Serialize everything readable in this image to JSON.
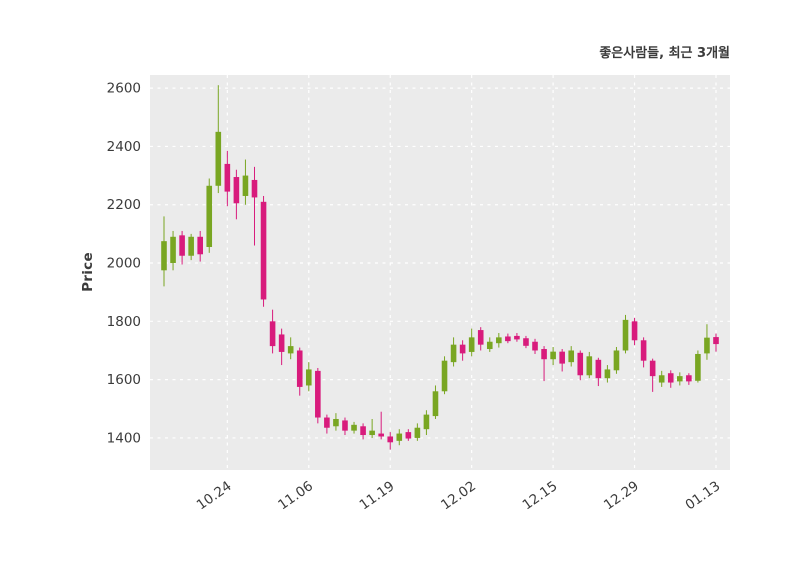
{
  "page": {
    "background": "#ffffff"
  },
  "chart_data": {
    "type": "candlestick",
    "title": "좋은사람들, 최근 3개월",
    "ylabel": "Price",
    "ylim": [
      1290,
      2645
    ],
    "yticks": [
      1400,
      1600,
      1800,
      2000,
      2200,
      2400,
      2600
    ],
    "xticks": [
      {
        "index": 7,
        "label": "10.24"
      },
      {
        "index": 16,
        "label": "11.06"
      },
      {
        "index": 25,
        "label": "11.19"
      },
      {
        "index": 34,
        "label": "12.02"
      },
      {
        "index": 43,
        "label": "12.15"
      },
      {
        "index": 52,
        "label": "12.29"
      },
      {
        "index": 61,
        "label": "01.13"
      }
    ],
    "grid": true,
    "legend": false,
    "colors": {
      "up": "#79a622",
      "down": "#d81b7c",
      "plot_bg": "#ebebeb",
      "grid": "#ffffff",
      "text": "#3b3b3b"
    },
    "candle_format": [
      "open",
      "high",
      "low",
      "close"
    ],
    "candles": [
      [
        1975,
        2160,
        1920,
        2075
      ],
      [
        2000,
        2110,
        1975,
        2090
      ],
      [
        2095,
        2110,
        1995,
        2025
      ],
      [
        2025,
        2100,
        2010,
        2090
      ],
      [
        2090,
        2110,
        2005,
        2030
      ],
      [
        2055,
        2290,
        2035,
        2265
      ],
      [
        2265,
        2610,
        2240,
        2450
      ],
      [
        2340,
        2385,
        2195,
        2245
      ],
      [
        2295,
        2320,
        2150,
        2205
      ],
      [
        2230,
        2355,
        2200,
        2300
      ],
      [
        2285,
        2330,
        2060,
        2225
      ],
      [
        2210,
        2230,
        1850,
        1875
      ],
      [
        1800,
        1840,
        1690,
        1715
      ],
      [
        1755,
        1775,
        1650,
        1695
      ],
      [
        1690,
        1745,
        1670,
        1715
      ],
      [
        1700,
        1710,
        1545,
        1575
      ],
      [
        1580,
        1660,
        1560,
        1635
      ],
      [
        1630,
        1640,
        1450,
        1470
      ],
      [
        1470,
        1480,
        1415,
        1435
      ],
      [
        1440,
        1485,
        1425,
        1465
      ],
      [
        1460,
        1470,
        1410,
        1425
      ],
      [
        1425,
        1455,
        1415,
        1445
      ],
      [
        1440,
        1450,
        1395,
        1410
      ],
      [
        1410,
        1465,
        1400,
        1425
      ],
      [
        1415,
        1490,
        1395,
        1405
      ],
      [
        1405,
        1420,
        1360,
        1385
      ],
      [
        1390,
        1430,
        1375,
        1415
      ],
      [
        1420,
        1430,
        1390,
        1398
      ],
      [
        1400,
        1450,
        1390,
        1435
      ],
      [
        1430,
        1495,
        1410,
        1480
      ],
      [
        1475,
        1580,
        1465,
        1560
      ],
      [
        1560,
        1680,
        1550,
        1665
      ],
      [
        1660,
        1745,
        1645,
        1720
      ],
      [
        1720,
        1735,
        1665,
        1690
      ],
      [
        1695,
        1775,
        1680,
        1745
      ],
      [
        1770,
        1780,
        1700,
        1720
      ],
      [
        1705,
        1745,
        1695,
        1730
      ],
      [
        1725,
        1760,
        1710,
        1745
      ],
      [
        1748,
        1758,
        1725,
        1732
      ],
      [
        1750,
        1760,
        1730,
        1738
      ],
      [
        1742,
        1750,
        1708,
        1716
      ],
      [
        1730,
        1740,
        1688,
        1700
      ],
      [
        1705,
        1715,
        1595,
        1670
      ],
      [
        1670,
        1712,
        1650,
        1696
      ],
      [
        1696,
        1705,
        1628,
        1655
      ],
      [
        1660,
        1715,
        1645,
        1700
      ],
      [
        1692,
        1700,
        1598,
        1615
      ],
      [
        1615,
        1695,
        1605,
        1680
      ],
      [
        1668,
        1675,
        1578,
        1605
      ],
      [
        1605,
        1650,
        1590,
        1635
      ],
      [
        1632,
        1712,
        1620,
        1700
      ],
      [
        1700,
        1822,
        1690,
        1805
      ],
      [
        1800,
        1812,
        1718,
        1735
      ],
      [
        1735,
        1745,
        1642,
        1665
      ],
      [
        1665,
        1672,
        1558,
        1612
      ],
      [
        1590,
        1630,
        1575,
        1615
      ],
      [
        1622,
        1632,
        1572,
        1590
      ],
      [
        1594,
        1625,
        1580,
        1612
      ],
      [
        1615,
        1622,
        1582,
        1594
      ],
      [
        1596,
        1700,
        1590,
        1688
      ],
      [
        1690,
        1790,
        1668,
        1744
      ],
      [
        1746,
        1758,
        1696,
        1722
      ]
    ]
  }
}
